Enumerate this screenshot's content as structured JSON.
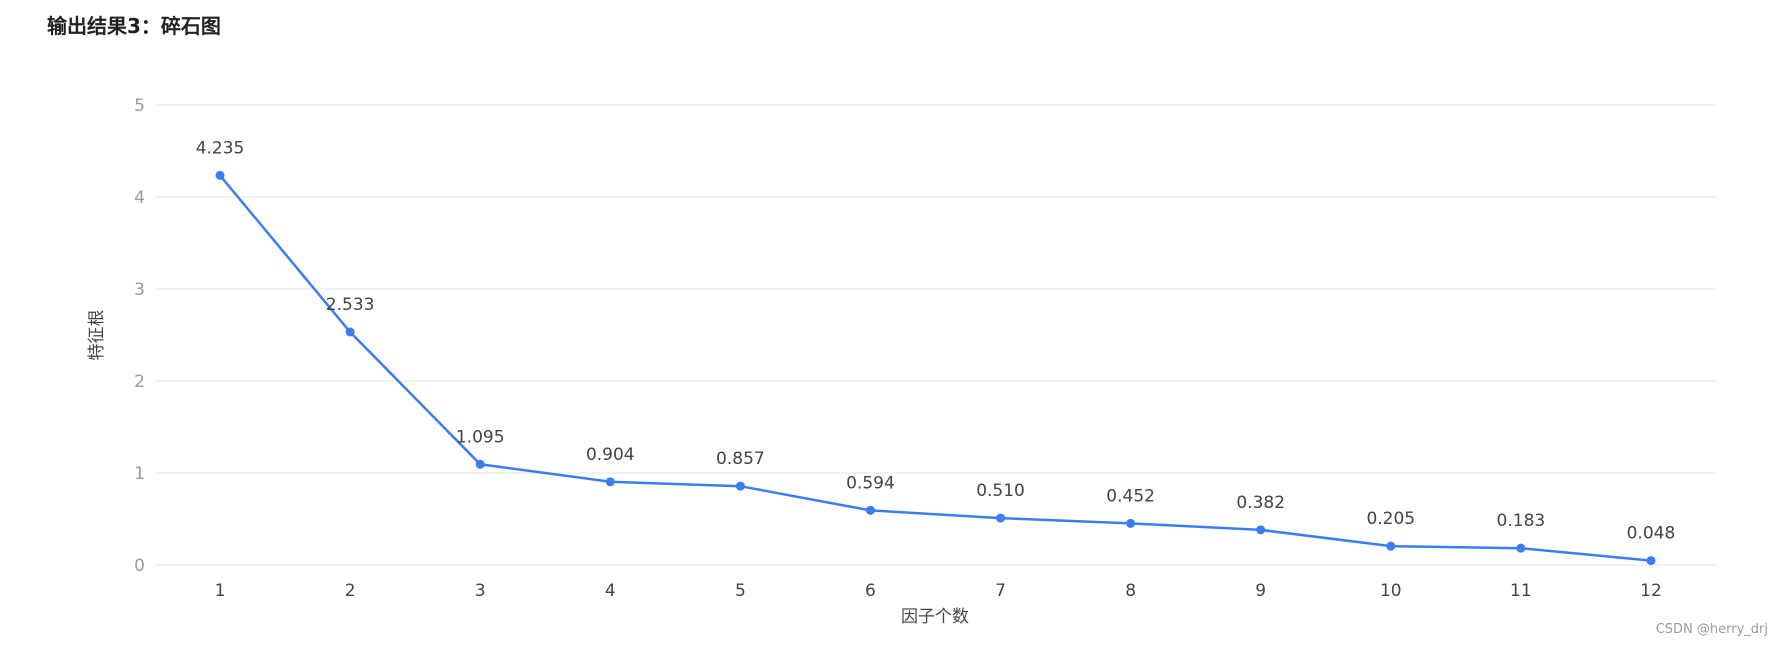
{
  "page_title": "输出结果3：碎石图",
  "watermark": "CSDN @herry_drj",
  "colors": {
    "line": "#3b7df0",
    "grid": "#e6e6e6",
    "tick_text": "#999999",
    "label_text": "#444444"
  },
  "chart_data": {
    "type": "line",
    "title": "",
    "xlabel": "因子个数",
    "ylabel": "特征根",
    "x": [
      1,
      2,
      3,
      4,
      5,
      6,
      7,
      8,
      9,
      10,
      11,
      12
    ],
    "y": [
      4.235,
      2.533,
      1.095,
      0.904,
      0.857,
      0.594,
      0.51,
      0.452,
      0.382,
      0.205,
      0.183,
      0.048
    ],
    "data_labels": [
      "4.235",
      "2.533",
      "1.095",
      "0.904",
      "0.857",
      "0.594",
      "0.510",
      "0.452",
      "0.382",
      "0.205",
      "0.183",
      "0.048"
    ],
    "ylim": [
      0,
      5
    ],
    "yticks": [
      0,
      1,
      2,
      3,
      4,
      5
    ],
    "xticks": [
      "1",
      "2",
      "3",
      "4",
      "5",
      "6",
      "7",
      "8",
      "9",
      "10",
      "11",
      "12"
    ],
    "grid": true,
    "legend": "none"
  }
}
